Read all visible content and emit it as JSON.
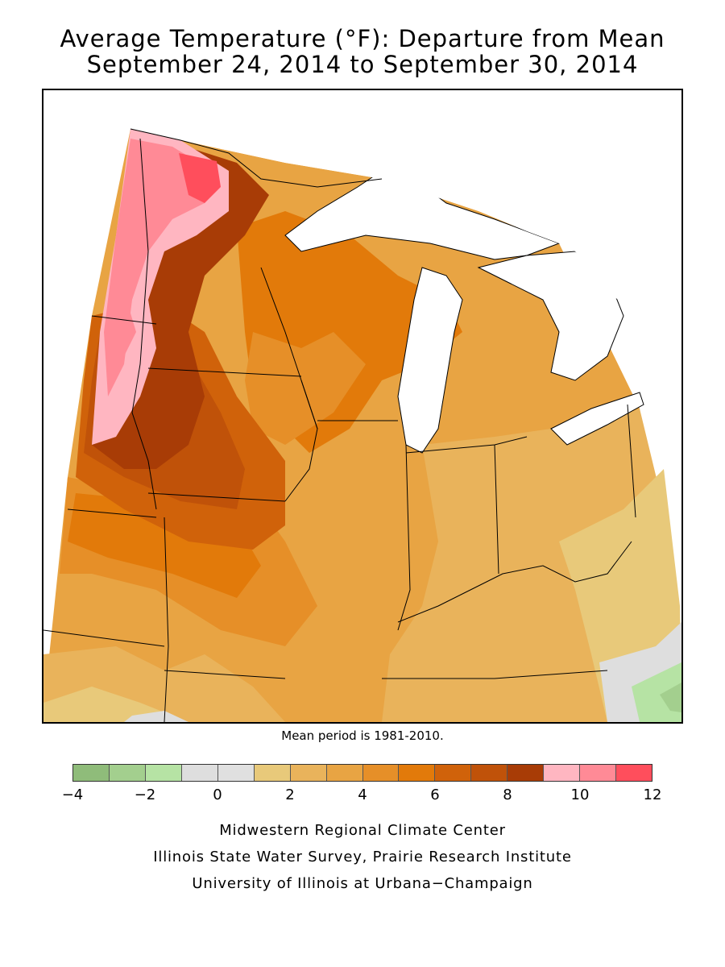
{
  "title": {
    "line1": "Average Temperature (°F): Departure from Mean",
    "line2": "September 24, 2014 to September 30, 2014"
  },
  "note": "Mean period is 1981-2010.",
  "legend": {
    "colors": [
      "#8fbc7a",
      "#a3cf8e",
      "#b6e3a4",
      "#dedede",
      "#e0e0e0",
      "#e8c97a",
      "#e9b35b",
      "#e8a443",
      "#e68f28",
      "#e27a0a",
      "#d0620a",
      "#c05209",
      "#a83c06",
      "#ffb6c1",
      "#ff8a96",
      "#ff4e5c"
    ],
    "tick_labels": [
      "−4",
      "−2",
      "0",
      "2",
      "4",
      "6",
      "8",
      "10",
      "12"
    ]
  },
  "credits": [
    "Midwestern Regional Climate Center",
    "Illinois State Water Survey, Prairie Research Institute",
    "University of Illinois at Urbana−Champaign"
  ]
}
